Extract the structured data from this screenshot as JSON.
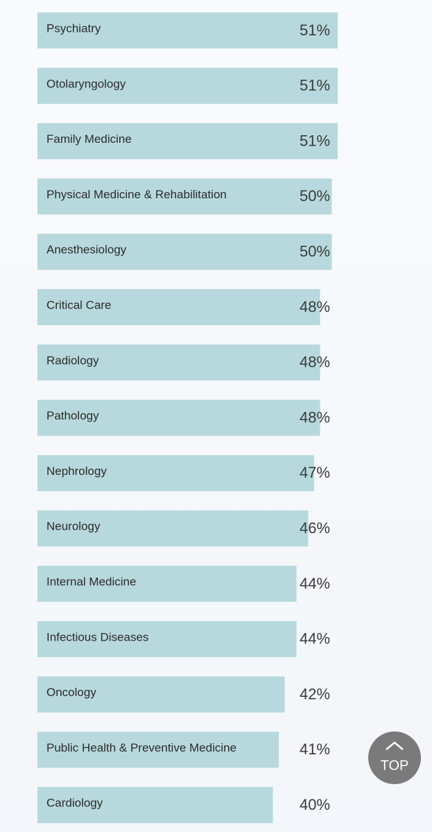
{
  "chart_data": {
    "type": "bar",
    "orientation": "horizontal",
    "color": "#b7d9dd",
    "categories": [
      "Psychiatry",
      "Otolaryngology",
      "Family Medicine",
      "Physical Medicine & Rehabilitation",
      "Anesthesiology",
      "Critical Care",
      "Radiology",
      "Pathology",
      "Nephrology",
      "Neurology",
      "Internal Medicine",
      "Infectious Diseases",
      "Oncology",
      "Public Health & Preventive Medicine",
      "Cardiology"
    ],
    "values": [
      51,
      51,
      51,
      50,
      50,
      48,
      48,
      48,
      47,
      46,
      44,
      44,
      42,
      41,
      40
    ],
    "value_labels": [
      "51%",
      "51%",
      "51%",
      "50%",
      "50%",
      "48%",
      "48%",
      "48%",
      "47%",
      "46%",
      "44%",
      "44%",
      "42%",
      "41%",
      "40%"
    ]
  },
  "scroll_button": "TOP"
}
